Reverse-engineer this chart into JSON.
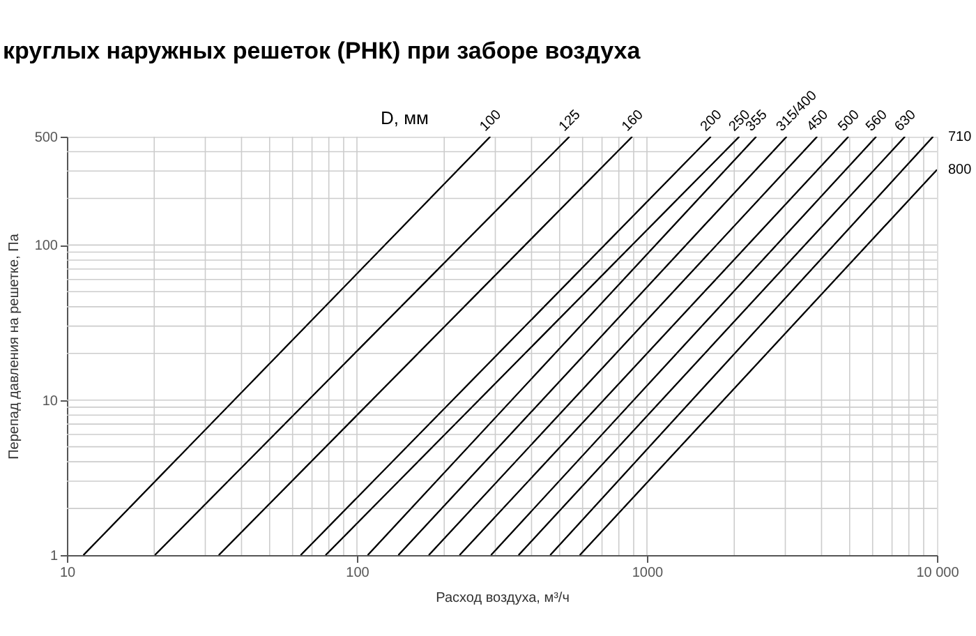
{
  "chart_data": {
    "type": "line",
    "title": "круглых наружных решеток (РНК) при заборе воздуха",
    "legend_title": "D, мм",
    "xlabel": "Расход воздуха, м³/ч",
    "ylabel": "Перепад давления на решетке, Па",
    "log": "xy",
    "grid": true,
    "marker": "none",
    "line_style": "solid",
    "xlim": [
      10,
      10000
    ],
    "ylim": [
      1,
      500
    ],
    "xticks": [
      10,
      100,
      1000,
      {
        "value": 10000,
        "label": "10 000"
      }
    ],
    "yticks": [
      1,
      10,
      100,
      500
    ],
    "series": [
      {
        "name": "100",
        "color": "#000000",
        "x": [
          11.4,
          288
        ],
        "values": [
          1,
          500
        ]
      },
      {
        "name": "125",
        "color": "#000000",
        "x": [
          20.1,
          540
        ],
        "values": [
          1,
          500
        ]
      },
      {
        "name": "160",
        "color": "#000000",
        "x": [
          33.4,
          889
        ],
        "values": [
          1,
          500
        ]
      },
      {
        "name": "200",
        "color": "#000000",
        "x": [
          64,
          1660
        ],
        "values": [
          1,
          500
        ]
      },
      {
        "name": "250",
        "color": "#000000",
        "x": [
          78,
          2080
        ],
        "values": [
          1,
          500
        ]
      },
      {
        "name": "355",
        "color": "#000000",
        "x": [
          109,
          2380
        ],
        "values": [
          1,
          500
        ]
      },
      {
        "name": "315/400",
        "color": "#000000",
        "x": [
          139,
          3030
        ],
        "values": [
          1,
          500
        ]
      },
      {
        "name": "450",
        "color": "#000000",
        "x": [
          177,
          3860
        ],
        "values": [
          1,
          500
        ]
      },
      {
        "name": "500",
        "color": "#000000",
        "x": [
          226,
          4950
        ],
        "values": [
          1,
          500
        ]
      },
      {
        "name": "560",
        "color": "#000000",
        "x": [
          290,
          6170
        ],
        "values": [
          1,
          500
        ]
      },
      {
        "name": "630",
        "color": "#000000",
        "x": [
          361,
          7750
        ],
        "values": [
          1,
          500
        ]
      },
      {
        "name": "710",
        "color": "#000000",
        "x": [
          464,
          9690
        ],
        "values": [
          1,
          500
        ]
      },
      {
        "name": "800",
        "color": "#000000",
        "x": [
          587,
          10000
        ],
        "values": [
          1,
          306
        ]
      }
    ]
  }
}
